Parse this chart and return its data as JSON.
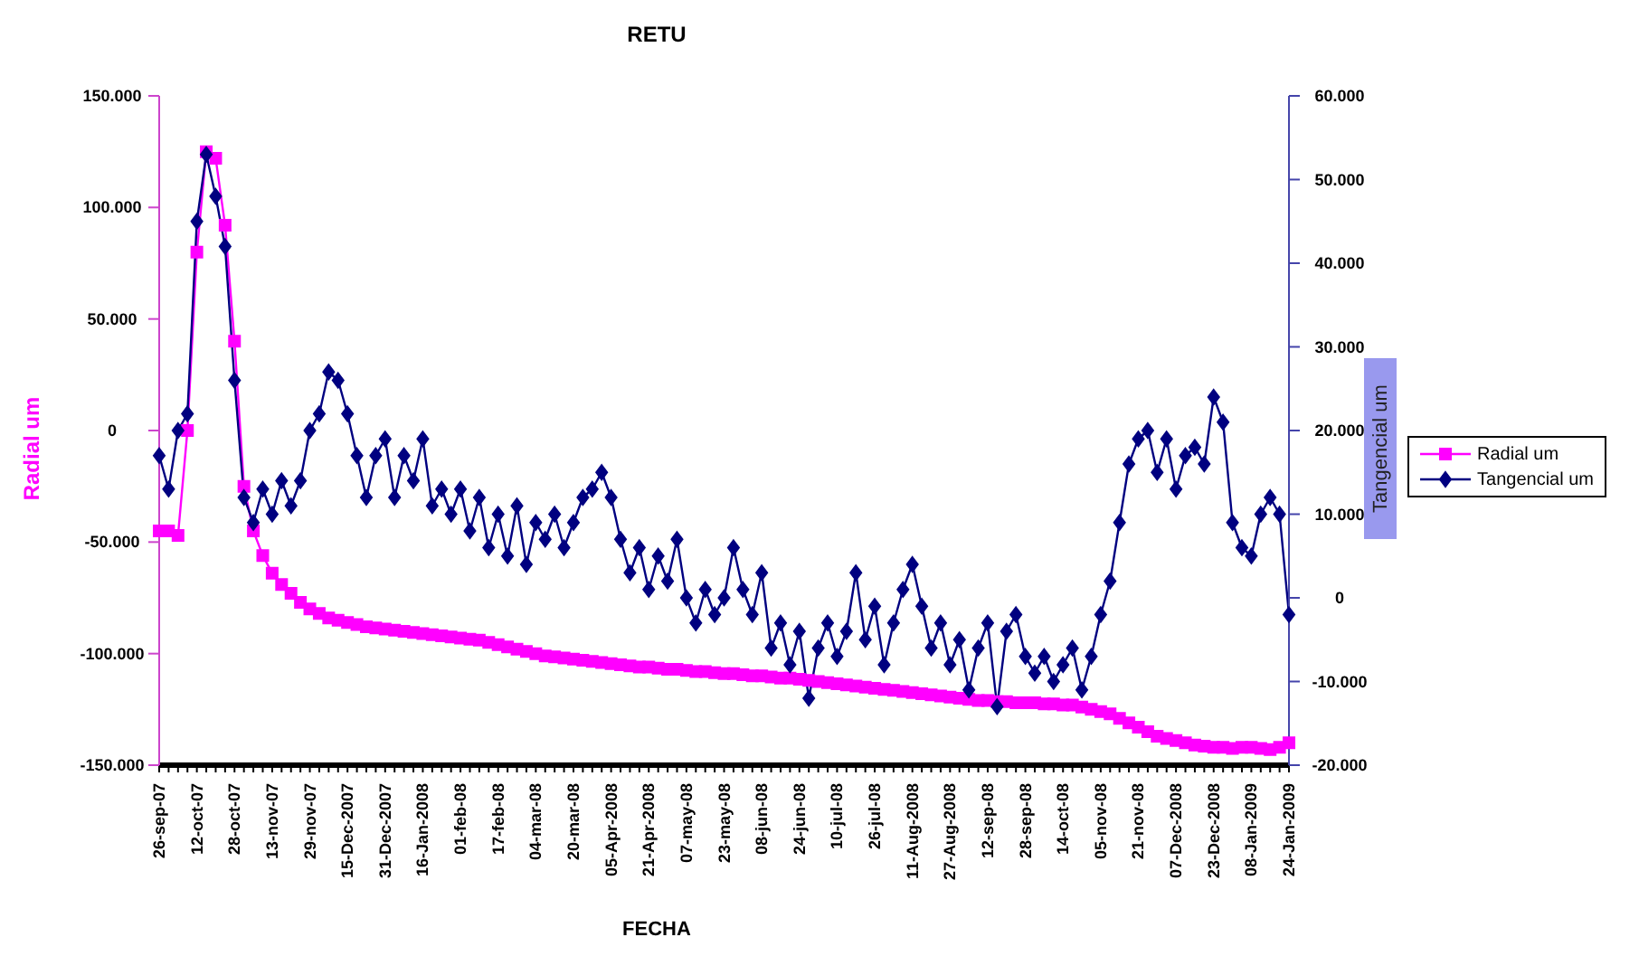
{
  "chart_data": {
    "type": "line",
    "title": "RETU",
    "xlabel": "FECHA",
    "ylabel": "Radial um",
    "y2label": "Tangencial um",
    "categories": [
      "26-sep-07",
      null,
      null,
      null,
      "12-oct-07",
      null,
      null,
      null,
      "28-oct-07",
      null,
      null,
      null,
      "13-nov-07",
      null,
      null,
      null,
      "29-nov-07",
      null,
      null,
      null,
      "15-Dec-2007",
      null,
      null,
      null,
      "31-Dec-2007",
      null,
      null,
      null,
      "16-Jan-2008",
      null,
      null,
      null,
      "01-feb-08",
      null,
      null,
      null,
      "17-feb-08",
      null,
      null,
      null,
      "04-mar-08",
      null,
      null,
      null,
      "20-mar-08",
      null,
      null,
      null,
      "05-Apr-2008",
      null,
      null,
      null,
      "21-Apr-2008",
      null,
      null,
      null,
      "07-may-08",
      null,
      null,
      null,
      "23-may-08",
      null,
      null,
      null,
      "08-jun-08",
      null,
      null,
      null,
      "24-jun-08",
      null,
      null,
      null,
      "10-jul-08",
      null,
      null,
      null,
      "26-jul-08",
      null,
      null,
      null,
      "11-Aug-2008",
      null,
      null,
      null,
      "27-Aug-2008",
      null,
      null,
      null,
      "12-sep-08",
      null,
      null,
      null,
      "28-sep-08",
      null,
      null,
      null,
      "14-oct-08",
      null,
      null,
      null,
      "05-nov-08",
      null,
      null,
      null,
      "21-nov-08",
      null,
      null,
      null,
      "07-Dec-2008",
      null,
      null,
      null,
      "23-Dec-2008",
      null,
      null,
      null,
      "08-Jan-2009",
      null,
      null,
      null,
      "24-Jan-2009"
    ],
    "series": [
      {
        "name": "Radial um",
        "color": "#ff00ff",
        "marker": "square",
        "values": [
          -45000,
          -45000,
          -47000,
          0,
          80000,
          125000,
          122000,
          92000,
          40000,
          -25000,
          -45000,
          -56000,
          -64000,
          -69000,
          -73000,
          -77000,
          -80000,
          -82000,
          -84000,
          -85000,
          -86000,
          -87000,
          -88000,
          -88500,
          -89000,
          -89500,
          -90000,
          -90500,
          -91000,
          -91500,
          -92000,
          -92500,
          -93000,
          -93500,
          -94000,
          -95000,
          -96000,
          -97000,
          -98000,
          -99000,
          -100000,
          -101000,
          -101500,
          -102000,
          -102500,
          -103000,
          -103500,
          -104000,
          -104500,
          -105000,
          -105500,
          -106000,
          -106000,
          -106500,
          -107000,
          -107000,
          -107500,
          -108000,
          -108000,
          -108500,
          -109000,
          -109000,
          -109500,
          -110000,
          -110000,
          -110500,
          -111000,
          -111000,
          -111500,
          -112000,
          -112500,
          -113000,
          -113500,
          -114000,
          -114500,
          -115000,
          -115500,
          -116000,
          -116500,
          -117000,
          -117500,
          -118000,
          -118500,
          -119000,
          -119500,
          -120000,
          -120500,
          -121000,
          -121000,
          -121500,
          -121500,
          -122000,
          -122000,
          -122000,
          -122500,
          -122500,
          -123000,
          -123000,
          -124000,
          -125000,
          -126000,
          -127000,
          -129000,
          -131000,
          -133000,
          -135000,
          -137000,
          -138000,
          -139000,
          -140000,
          -141000,
          -141500,
          -142000,
          -142000,
          -142500,
          -142000,
          -142000,
          -142500,
          -143000,
          -142000,
          -140000
        ]
      },
      {
        "name": "Tangencial um",
        "color": "#000080",
        "marker": "diamond",
        "axis": "y2",
        "values": [
          17000,
          13000,
          20000,
          22000,
          45000,
          53000,
          48000,
          42000,
          26000,
          12000,
          9000,
          13000,
          10000,
          14000,
          11000,
          14000,
          20000,
          22000,
          27000,
          26000,
          22000,
          17000,
          12000,
          17000,
          19000,
          12000,
          17000,
          14000,
          19000,
          11000,
          13000,
          10000,
          13000,
          8000,
          12000,
          6000,
          10000,
          5000,
          11000,
          4000,
          9000,
          7000,
          10000,
          6000,
          9000,
          12000,
          13000,
          15000,
          12000,
          7000,
          3000,
          6000,
          1000,
          5000,
          2000,
          7000,
          0,
          -3000,
          1000,
          -2000,
          0,
          6000,
          1000,
          -2000,
          3000,
          -6000,
          -3000,
          -8000,
          -4000,
          -12000,
          -6000,
          -3000,
          -7000,
          -4000,
          3000,
          -5000,
          -1000,
          -8000,
          -3000,
          1000,
          4000,
          -1000,
          -6000,
          -3000,
          -8000,
          -5000,
          -11000,
          -6000,
          -3000,
          -13000,
          -4000,
          -2000,
          -7000,
          -9000,
          -7000,
          -10000,
          -8000,
          -6000,
          -11000,
          -7000,
          -2000,
          2000,
          9000,
          16000,
          19000,
          20000,
          15000,
          19000,
          13000,
          17000,
          18000,
          16000,
          24000,
          21000,
          9000,
          6000,
          5000,
          10000,
          12000,
          10000,
          -2000
        ]
      }
    ],
    "ylim": [
      -150000,
      150000
    ],
    "yticks": [
      {
        "value": -150000,
        "label": "-150.000"
      },
      {
        "value": -100000,
        "label": "-100.000"
      },
      {
        "value": -50000,
        "label": "-50.000"
      },
      0,
      {
        "value": 50000,
        "label": "50.000"
      },
      {
        "value": 100000,
        "label": "100.000"
      },
      {
        "value": 150000,
        "label": "150.000"
      }
    ],
    "y2lim": [
      -20000,
      60000
    ],
    "y2ticks": [
      {
        "value": -20000,
        "label": "-20.000"
      },
      {
        "value": -10000,
        "label": "-10.000"
      },
      0,
      {
        "value": 10000,
        "label": "10.000"
      },
      {
        "value": 20000,
        "label": "20.000"
      },
      {
        "value": 30000,
        "label": "30.000"
      },
      {
        "value": 40000,
        "label": "40.000"
      },
      {
        "value": 50000,
        "label": "50.000"
      },
      {
        "value": 60000,
        "label": "60.000"
      }
    ],
    "legend": "right"
  }
}
